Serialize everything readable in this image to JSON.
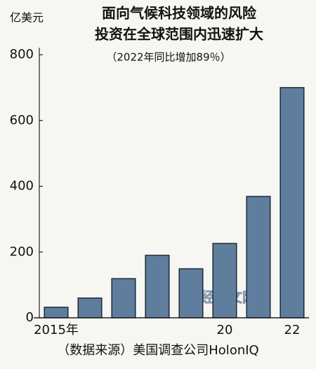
{
  "chart_data": {
    "type": "bar",
    "title_lines": [
      "面向气候科技领域的风险",
      "投资在全球范围内迅速扩大"
    ],
    "subtitle": "（2022年同比增加89％）",
    "y_unit": "亿美元",
    "source": "（数据来源）美国调查公司HolonIQ",
    "watermark": "日经中文网",
    "categories": [
      "2015年",
      null,
      null,
      null,
      null,
      "20",
      null,
      "22"
    ],
    "values": [
      32,
      60,
      119,
      190,
      149,
      226,
      369,
      700
    ],
    "color": "#5f7d9c",
    "ylim": [
      0,
      800
    ],
    "yticks": [
      0,
      200,
      400,
      600,
      800
    ]
  }
}
